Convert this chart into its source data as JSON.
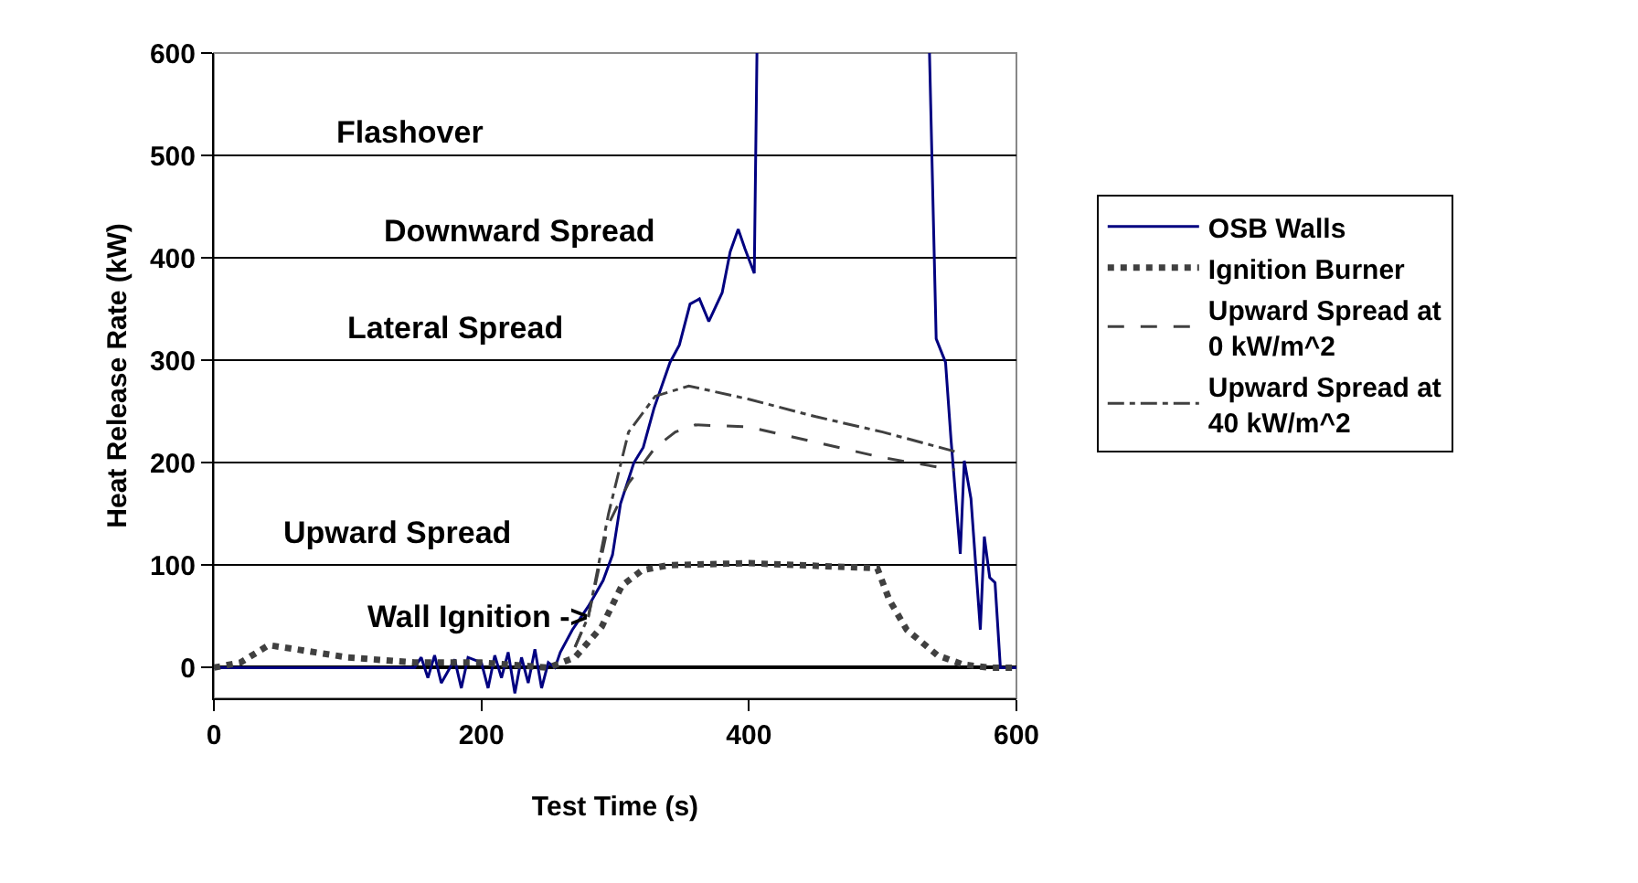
{
  "chart_data": {
    "type": "line",
    "xlabel": "Test Time (s)",
    "ylabel": "Heat Release Rate (kW)",
    "xlim": [
      0,
      600
    ],
    "xticks": [
      0,
      200,
      400,
      600
    ],
    "ylim": [
      -30,
      600
    ],
    "yticks": [
      0,
      100,
      200,
      300,
      400,
      500,
      600
    ],
    "grid": "y",
    "legend": "right",
    "marker": "none",
    "series": [
      {
        "name": "OSB Walls",
        "color": "#000080",
        "line_style": "solid",
        "x": [
          0,
          150,
          155,
          160,
          165,
          170,
          180,
          185,
          190,
          200,
          205,
          210,
          215,
          220,
          225,
          230,
          235,
          240,
          245,
          250,
          255,
          259,
          268,
          280,
          291,
          298,
          304,
          314,
          321,
          329,
          341,
          348,
          356,
          363,
          370,
          380,
          386,
          392,
          397,
          404,
          406,
          470,
          535,
          540,
          547,
          551,
          558,
          561,
          566,
          573,
          576,
          580,
          584,
          588,
          600
        ],
        "values": [
          0,
          0,
          10,
          -10,
          12,
          -15,
          8,
          -20,
          10,
          5,
          -20,
          12,
          -10,
          15,
          -25,
          10,
          -15,
          18,
          -20,
          5,
          0,
          15,
          37,
          60,
          85,
          110,
          160,
          200,
          215,
          253,
          298,
          315,
          355,
          360,
          338,
          366,
          406,
          428,
          409,
          385,
          600,
          null,
          600,
          321,
          298,
          224,
          111,
          202,
          165,
          37,
          128,
          88,
          83,
          0,
          0
        ]
      },
      {
        "name": "Ignition Burner",
        "color": "#404040",
        "line_style": "dotted",
        "x": [
          0,
          20,
          41,
          100,
          150,
          200,
          250,
          270,
          290,
          305,
          320,
          340,
          400,
          496,
          505,
          518,
          541,
          560,
          580,
          600
        ],
        "values": [
          0,
          5,
          22,
          10,
          5,
          5,
          0,
          10,
          40,
          80,
          95,
          100,
          102,
          97,
          66,
          37,
          12,
          3,
          0,
          0
        ]
      },
      {
        "name": "Upward Spread at 0 kW/m^2",
        "color": "#404040",
        "line_style": "dashed",
        "x": [
          270,
          280,
          295,
          310,
          330,
          345,
          360,
          400,
          450,
          500,
          554
        ],
        "values": [
          20,
          50,
          140,
          180,
          215,
          230,
          237,
          235,
          220,
          205,
          193
        ]
      },
      {
        "name": "Upward Spread at 40 kW/m^2",
        "color": "#404040",
        "line_style": "dashdot",
        "x": [
          270,
          280,
          295,
          310,
          330,
          355,
          400,
          450,
          500,
          554
        ],
        "values": [
          20,
          50,
          150,
          230,
          265,
          275,
          262,
          245,
          230,
          211
        ]
      }
    ],
    "annotations": [
      "Flashover",
      "Downward Spread",
      "Lateral Spread",
      "Upward Spread",
      {
        "text": "Wall Ignition ->",
        "x": 283,
        "y": 50
      }
    ]
  }
}
